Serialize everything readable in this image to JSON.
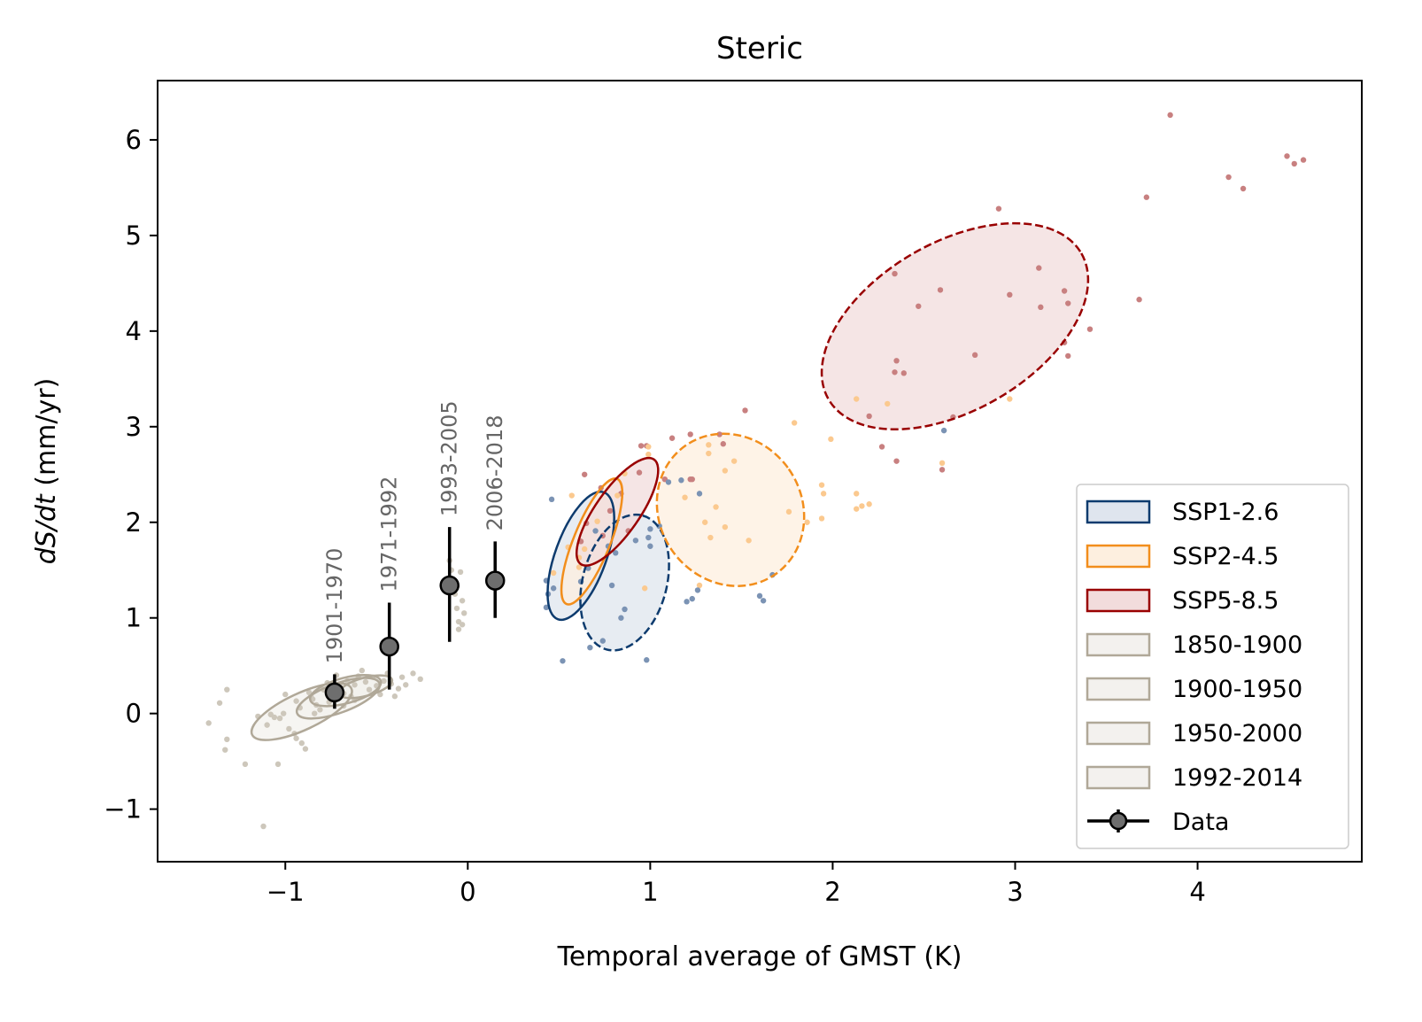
{
  "chart_data": {
    "type": "scatter",
    "title": "Steric",
    "xlabel": "Temporal average of GMST (K)",
    "ylabel_italic": "dS/dt",
    "ylabel_unit": " (mm/yr)",
    "xlim": [
      -1.7,
      4.9
    ],
    "ylim": [
      -1.55,
      6.62
    ],
    "xticks": [
      -1,
      0,
      1,
      2,
      3,
      4
    ],
    "xtick_labels": [
      "−1",
      "0",
      "1",
      "2",
      "3",
      "4"
    ],
    "yticks": [
      -1,
      0,
      1,
      2,
      3,
      4,
      5,
      6
    ],
    "ytick_labels": [
      "−1",
      "0",
      "1",
      "2",
      "3",
      "4",
      "5",
      "6"
    ],
    "grid": false,
    "legend_position": "bottom-right",
    "colors": {
      "SSP1-2.6": "#0d3b6e",
      "SSP2-4.5": "#f28e1c",
      "SSP5-8.5": "#990000",
      "historical": "#b0a898",
      "data": "#000000"
    },
    "legend": [
      {
        "label": "SSP1-2.6",
        "edge": "#0d3b6e",
        "fill": "#dfe5ee"
      },
      {
        "label": "SSP2-4.5",
        "edge": "#f28e1c",
        "fill": "#fdefdf"
      },
      {
        "label": "SSP5-8.5",
        "edge": "#990000",
        "fill": "#f2dcdc"
      },
      {
        "label": "1850-1900",
        "edge": "#b0a898",
        "fill": "#f3f1ee"
      },
      {
        "label": "1900-1950",
        "edge": "#b0a898",
        "fill": "#f3f1ee"
      },
      {
        "label": "1950-2000",
        "edge": "#b0a898",
        "fill": "#f3f1ee"
      },
      {
        "label": "1992-2014",
        "edge": "#b0a898",
        "fill": "#f3f1ee"
      },
      {
        "label": "Data",
        "marker": "errorbar"
      }
    ],
    "observations": [
      {
        "period": "1901-1970",
        "x": -0.73,
        "y": 0.22,
        "yerr_low": 0.05,
        "yerr_high": 0.41
      },
      {
        "period": "1971-1992",
        "x": -0.43,
        "y": 0.7,
        "yerr_low": 0.25,
        "yerr_high": 1.16
      },
      {
        "period": "1993-2005",
        "x": -0.1,
        "y": 1.34,
        "yerr_low": 0.75,
        "yerr_high": 1.95
      },
      {
        "period": "2006-2018",
        "x": 0.15,
        "y": 1.39,
        "yerr_low": 1.0,
        "yerr_high": 1.8
      }
    ],
    "ellipses": [
      {
        "series": "SSP1-2.6",
        "style": "solid",
        "cx": 0.62,
        "cy": 1.65,
        "rx": 0.37,
        "ry": 0.14,
        "angle": 70
      },
      {
        "series": "SSP1-2.6",
        "style": "dashed",
        "cx": 0.86,
        "cy": 1.37,
        "rx": 0.38,
        "ry": 0.23,
        "angle": 75
      },
      {
        "series": "SSP2-4.5",
        "style": "solid",
        "cx": 0.68,
        "cy": 1.8,
        "rx": 0.37,
        "ry": 0.1,
        "angle": 68
      },
      {
        "series": "SSP2-4.5",
        "style": "dashed",
        "cx": 1.44,
        "cy": 2.13,
        "rx": 0.39,
        "ry": 0.43,
        "angle": 35
      },
      {
        "series": "SSP5-8.5",
        "style": "solid",
        "cx": 0.82,
        "cy": 2.11,
        "rx": 0.35,
        "ry": 0.12,
        "angle": 55
      },
      {
        "series": "SSP5-8.5",
        "style": "dashed",
        "cx": 2.67,
        "cy": 4.05,
        "rx": 0.8,
        "ry": 0.46,
        "angle": 30
      },
      {
        "series": "historical",
        "style": "solid",
        "cx": -0.91,
        "cy": 0.02,
        "rx": 0.3,
        "ry": 0.1,
        "angle": 25
      },
      {
        "series": "historical",
        "style": "solid",
        "cx": -0.71,
        "cy": 0.16,
        "rx": 0.24,
        "ry": 0.08,
        "angle": 20
      },
      {
        "series": "historical",
        "style": "solid",
        "cx": -0.67,
        "cy": 0.24,
        "rx": 0.2,
        "ry": 0.07,
        "angle": 15
      },
      {
        "series": "historical",
        "style": "solid",
        "cx": -0.56,
        "cy": 0.28,
        "rx": 0.15,
        "ry": 0.05,
        "angle": 15
      }
    ],
    "scatter": [
      {
        "series": "SSP5-8.5",
        "points": [
          [
            3.85,
            6.26
          ],
          [
            4.49,
            5.83
          ],
          [
            4.53,
            5.75
          ],
          [
            4.58,
            5.79
          ],
          [
            4.17,
            5.61
          ],
          [
            4.25,
            5.49
          ],
          [
            3.72,
            5.4
          ],
          [
            2.91,
            5.28
          ],
          [
            2.34,
            4.6
          ],
          [
            2.59,
            4.43
          ],
          [
            3.13,
            4.66
          ],
          [
            2.47,
            4.26
          ],
          [
            2.97,
            4.38
          ],
          [
            3.14,
            4.25
          ],
          [
            3.27,
            4.42
          ],
          [
            3.29,
            4.29
          ],
          [
            3.68,
            4.33
          ],
          [
            3.41,
            4.02
          ],
          [
            3.27,
            3.88
          ],
          [
            3.29,
            3.74
          ],
          [
            2.78,
            3.75
          ],
          [
            2.35,
            3.69
          ],
          [
            2.34,
            3.57
          ],
          [
            2.39,
            3.56
          ],
          [
            2.2,
            3.11
          ],
          [
            2.66,
            3.1
          ],
          [
            2.27,
            2.79
          ],
          [
            2.35,
            2.64
          ],
          [
            2.6,
            2.55
          ],
          [
            1.52,
            3.17
          ],
          [
            1.38,
            2.92
          ],
          [
            1.4,
            2.82
          ],
          [
            1.22,
            2.92
          ],
          [
            1.08,
            2.45
          ],
          [
            1.12,
            2.88
          ],
          [
            0.95,
            2.8
          ],
          [
            0.98,
            2.8
          ],
          [
            0.64,
            2.5
          ],
          [
            0.94,
            2.52
          ],
          [
            0.84,
            2.3
          ],
          [
            0.78,
            2.12
          ],
          [
            0.65,
            1.99
          ],
          [
            0.74,
            1.86
          ],
          [
            0.73,
            2.36
          ],
          [
            0.62,
            1.8
          ],
          [
            0.88,
            1.91
          ],
          [
            1.22,
            2.45
          ],
          [
            1.23,
            2.45
          ]
        ]
      },
      {
        "series": "SSP2-4.5",
        "points": [
          [
            1.79,
            3.04
          ],
          [
            1.99,
            2.87
          ],
          [
            2.13,
            3.29
          ],
          [
            2.97,
            3.29
          ],
          [
            2.3,
            3.24
          ],
          [
            1.32,
            2.81
          ],
          [
            1.32,
            2.72
          ],
          [
            1.46,
            2.64
          ],
          [
            0.99,
            2.79
          ],
          [
            0.99,
            2.71
          ],
          [
            1.94,
            2.39
          ],
          [
            1.95,
            2.3
          ],
          [
            1.76,
            2.11
          ],
          [
            1.36,
            2.16
          ],
          [
            1.3,
            2.0
          ],
          [
            1.41,
            1.95
          ],
          [
            1.33,
            1.84
          ],
          [
            1.54,
            1.81
          ],
          [
            1.94,
            2.04
          ],
          [
            1.86,
            2.0
          ],
          [
            2.13,
            2.3
          ],
          [
            2.2,
            2.19
          ],
          [
            2.16,
            2.17
          ],
          [
            2.13,
            2.14
          ],
          [
            0.86,
            2.51
          ],
          [
            0.82,
            2.28
          ],
          [
            0.71,
            2.01
          ],
          [
            0.57,
            2.28
          ],
          [
            0.64,
            1.72
          ],
          [
            0.61,
            1.63
          ],
          [
            0.55,
            1.74
          ],
          [
            0.61,
            1.53
          ],
          [
            1.27,
            1.34
          ],
          [
            0.97,
            1.31
          ],
          [
            0.47,
            1.47
          ],
          [
            1.41,
            2.54
          ],
          [
            1.19,
            2.26
          ],
          [
            2.6,
            2.62
          ]
        ]
      },
      {
        "series": "SSP1-2.6",
        "points": [
          [
            2.61,
            2.96
          ],
          [
            1.67,
            1.45
          ],
          [
            1.6,
            1.23
          ],
          [
            1.62,
            1.18
          ],
          [
            1.26,
            1.29
          ],
          [
            1.23,
            1.2
          ],
          [
            1.2,
            1.17
          ],
          [
            1.1,
            2.42
          ],
          [
            1.17,
            2.44
          ],
          [
            1.27,
            2.3
          ],
          [
            1.0,
            1.93
          ],
          [
            1.0,
            1.75
          ],
          [
            1.05,
            1.96
          ],
          [
            0.99,
            1.84
          ],
          [
            0.92,
            1.81
          ],
          [
            0.77,
            1.75
          ],
          [
            0.7,
            1.91
          ],
          [
            0.81,
            1.68
          ],
          [
            0.46,
            2.24
          ],
          [
            0.66,
            1.52
          ],
          [
            0.62,
            1.38
          ],
          [
            0.43,
            1.39
          ],
          [
            0.47,
            1.31
          ],
          [
            0.44,
            1.25
          ],
          [
            0.43,
            1.11
          ],
          [
            0.79,
            1.34
          ],
          [
            0.86,
            1.09
          ],
          [
            0.52,
            0.55
          ],
          [
            0.67,
            0.69
          ],
          [
            0.74,
            0.76
          ],
          [
            0.98,
            0.56
          ],
          [
            0.84,
            1.0
          ]
        ]
      },
      {
        "series": "historical",
        "points": [
          [
            -1.42,
            -0.1
          ],
          [
            -1.32,
            0.25
          ],
          [
            -1.36,
            0.11
          ],
          [
            -1.32,
            -0.27
          ],
          [
            -1.33,
            -0.38
          ],
          [
            -1.22,
            -0.53
          ],
          [
            -1.04,
            -0.53
          ],
          [
            -1.12,
            -1.18
          ],
          [
            -1.1,
            -0.12
          ],
          [
            -1.08,
            -0.01
          ],
          [
            -1.06,
            -0.04
          ],
          [
            -1.03,
            -0.05
          ],
          [
            -1.0,
            0.2
          ],
          [
            -0.98,
            -0.16
          ],
          [
            -0.95,
            -0.21
          ],
          [
            -0.94,
            -0.26
          ],
          [
            -0.91,
            -0.31
          ],
          [
            -0.89,
            -0.37
          ],
          [
            -0.87,
            0.22
          ],
          [
            -0.85,
            0.15
          ],
          [
            -0.83,
            0.09
          ],
          [
            -0.81,
            0.04
          ],
          [
            -0.79,
            0.25
          ],
          [
            -0.77,
            0.32
          ],
          [
            -0.75,
            0.19
          ],
          [
            -0.72,
            0.4
          ],
          [
            -0.7,
            0.28
          ],
          [
            -0.68,
            0.21
          ],
          [
            -0.66,
            0.34
          ],
          [
            -0.64,
            0.18
          ],
          [
            -0.62,
            0.3
          ],
          [
            -0.6,
            0.39
          ],
          [
            -0.58,
            0.45
          ],
          [
            -0.56,
            0.33
          ],
          [
            -0.54,
            0.25
          ],
          [
            -0.52,
            0.38
          ],
          [
            -0.5,
            0.29
          ],
          [
            -0.48,
            0.2
          ],
          [
            -0.46,
            0.34
          ],
          [
            -0.44,
            0.42
          ],
          [
            -0.42,
            0.31
          ],
          [
            -0.4,
            0.18
          ],
          [
            -0.38,
            0.26
          ],
          [
            -0.36,
            0.38
          ],
          [
            -0.34,
            0.3
          ],
          [
            -0.3,
            0.42
          ],
          [
            -0.26,
            0.36
          ],
          [
            -0.92,
            0.06
          ],
          [
            -0.84,
            0.0
          ],
          [
            -0.76,
            0.12
          ],
          [
            -0.68,
            0.08
          ],
          [
            -0.62,
            0.14
          ],
          [
            -0.94,
            0.13
          ],
          [
            -0.86,
            0.18
          ],
          [
            -1.15,
            -0.03
          ],
          [
            -1.01,
            0.0
          ],
          [
            -0.1,
            1.6
          ],
          [
            -0.08,
            1.4
          ],
          [
            -0.07,
            1.25
          ],
          [
            -0.06,
            1.1
          ],
          [
            -0.05,
            0.96
          ],
          [
            -0.04,
            1.48
          ],
          [
            -0.03,
            1.18
          ],
          [
            -0.02,
            1.05
          ],
          [
            -0.06,
            1.33
          ],
          [
            -0.09,
            1.5
          ],
          [
            -0.05,
            0.88
          ],
          [
            -0.03,
            0.93
          ]
        ]
      }
    ]
  }
}
